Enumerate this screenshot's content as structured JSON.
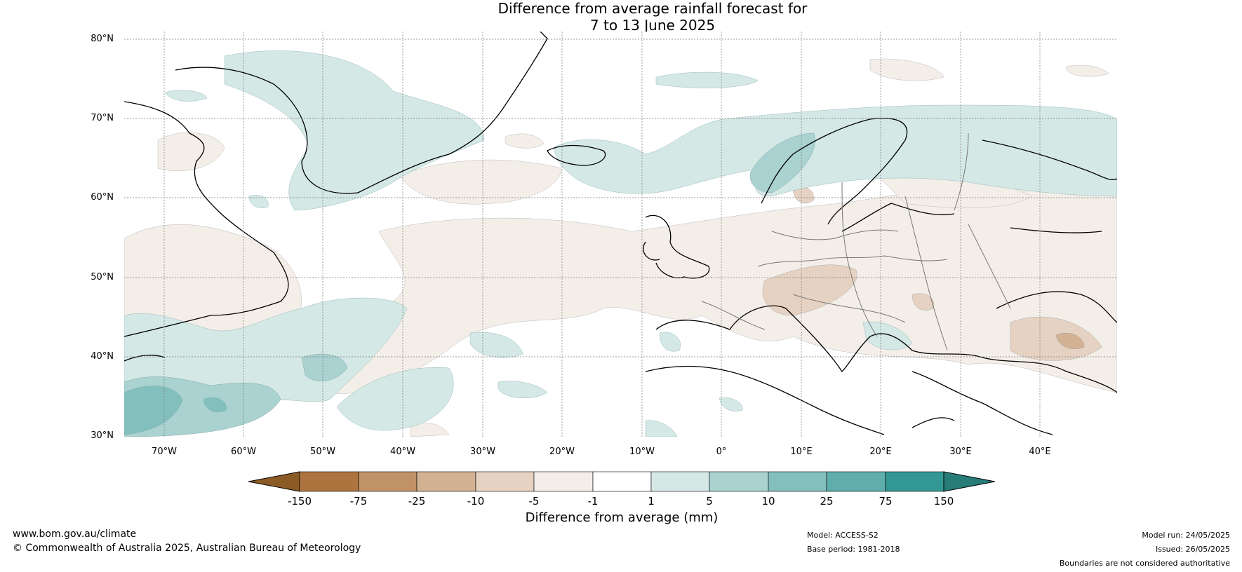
{
  "title": {
    "line1": "Difference from average rainfall forecast for",
    "line2": "7 to 13 June 2025"
  },
  "map": {
    "lat_labels": [
      "80°N",
      "70°N",
      "60°N",
      "50°N",
      "40°N",
      "30°N"
    ],
    "lon_labels": [
      "70°W",
      "60°W",
      "50°W",
      "40°W",
      "30°W",
      "20°W",
      "10°W",
      "0°",
      "10°E",
      "20°E",
      "30°E",
      "40°E"
    ]
  },
  "colorbar": {
    "ticks": [
      "-150",
      "-75",
      "-25",
      "-10",
      "-5",
      "-1",
      "1",
      "5",
      "10",
      "25",
      "75",
      "150"
    ],
    "colors": [
      "#8c5a24",
      "#ae7440",
      "#c19168",
      "#d3b293",
      "#e6d2c2",
      "#f4eee8",
      "#ffffff",
      "#d4e8e6",
      "#a9d2d0",
      "#82bfbd",
      "#5faeab",
      "#339894",
      "#277c78"
    ],
    "label": "Difference from average (mm)"
  },
  "footer": {
    "website": "www.bom.gov.au/climate",
    "copyright": "© Commonwealth of Australia 2025, Australian Bureau of Meteorology",
    "model": "Model: ACCESS-S2",
    "base_period": "Base period: 1981-2018",
    "model_run": "Model run: 24/05/2025",
    "issued": "Issued: 26/05/2025",
    "disclaimer": "Boundaries are not considered authoritative"
  }
}
